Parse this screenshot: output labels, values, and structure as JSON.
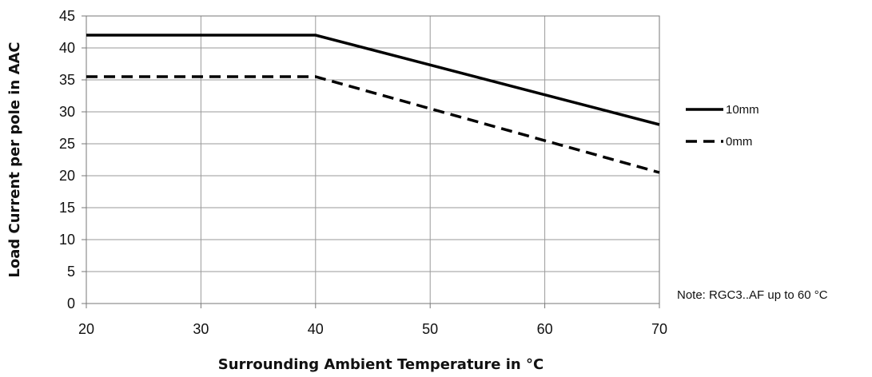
{
  "chart_data": {
    "type": "line",
    "title": "",
    "xlabel": "Surrounding Ambient Temperature in °C",
    "ylabel": "Load Current per pole in AAC",
    "xlim": [
      20,
      70
    ],
    "ylim": [
      0,
      45
    ],
    "xticks": [
      20,
      30,
      40,
      50,
      60,
      70
    ],
    "yticks": [
      0,
      5,
      10,
      15,
      20,
      25,
      30,
      35,
      40,
      45
    ],
    "grid": true,
    "legend_position": "right",
    "series": [
      {
        "name": "10mm",
        "style": "solid",
        "color": "#000000",
        "x": [
          20,
          40,
          70
        ],
        "y": [
          42,
          42,
          28
        ]
      },
      {
        "name": "0mm",
        "style": "dashed",
        "color": "#000000",
        "x": [
          20,
          40,
          70
        ],
        "y": [
          35.5,
          35.5,
          20.5
        ]
      }
    ],
    "annotations": [
      {
        "text": "Note: RGC3..AF up to 60 °C"
      }
    ]
  }
}
